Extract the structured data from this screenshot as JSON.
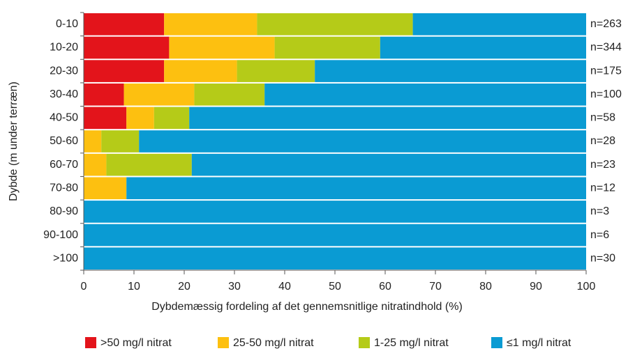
{
  "chart_data": {
    "type": "stacked_barh",
    "x_label": "Dybdemæssig fordeling af det gennemsnitlige nitratindhold (%)",
    "y_label": "Dybde (m under terræn)",
    "categories": [
      "0-10",
      "10-20",
      "20-30",
      "30-40",
      "40-50",
      "50-60",
      "60-70",
      "70-80",
      "80-90",
      "90-100",
      ">100"
    ],
    "series": [
      {
        "name": ">50 mg/l nitrat",
        "color": "#e3141b",
        "values": [
          16,
          17,
          16,
          8,
          8.5,
          0,
          0,
          0,
          0,
          0,
          0
        ]
      },
      {
        "name": "25-50 mg/l nitrat",
        "color": "#fdc010",
        "values": [
          18.5,
          21,
          14.5,
          14,
          5.5,
          3.5,
          4.5,
          8.5,
          0,
          0,
          0
        ]
      },
      {
        "name": "1-25 mg/l nitrat",
        "color": "#b5cb18",
        "values": [
          31,
          21,
          15.5,
          14,
          7,
          7.5,
          17,
          0,
          0,
          0,
          0
        ]
      },
      {
        "name": "≤1 mg/l nitrat",
        "color": "#0a9bd3",
        "values": [
          34.5,
          41,
          54,
          64,
          79,
          89,
          78.5,
          91.5,
          100,
          100,
          100
        ]
      }
    ],
    "row_labels": [
      "n=263",
      "n=344",
      "n=175",
      "n=100",
      "n=58",
      "n=28",
      "n=23",
      "n=12",
      "n=3",
      "n=6",
      "n=30"
    ],
    "xlim": [
      0,
      100
    ],
    "xticks": [
      0,
      10,
      20,
      30,
      40,
      50,
      60,
      70,
      80,
      90,
      100
    ],
    "legend": "bottom"
  }
}
